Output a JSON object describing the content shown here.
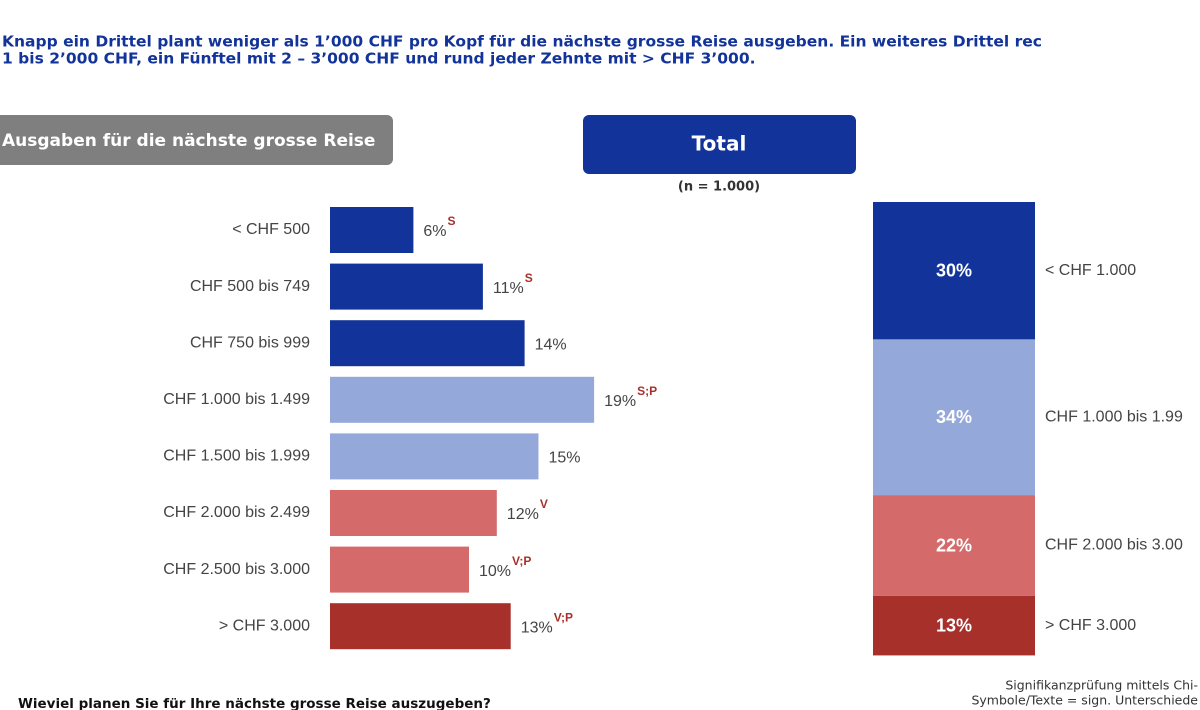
{
  "title_lines": [
    "Knapp ein Drittel plant weniger als 1’000 CHF pro Kopf für die nächste grosse Reise ausgeben. Ein weiteres Drittel rec",
    "1 bis 2’000 CHF, ein Fünftel mit 2 – 3’000 CHF und rund jeder Zehnte mit > CHF 3’000."
  ],
  "section_label": "Ausgaben für die nächste grosse Reise",
  "panel_title": "Total",
  "sample_note": "(n = 1.000)",
  "question": "Wieviel planen Sie für Ihre nächste grosse Reise auszugeben?",
  "footnote_lines": [
    "Signifikanzprüfung mittels Chi-",
    "Symbole/Texte = sign. Unterschiede"
  ],
  "chart_data": [
    {
      "type": "hbar",
      "categories": [
        "< CHF 500",
        "CHF 500 bis 749",
        "CHF 750 bis 999",
        "CHF 1.000 bis 1.499",
        "CHF 1.500 bis 1.999",
        "CHF 2.000 bis 2.499",
        "CHF 2.500 bis 3.000",
        "> CHF 3.000"
      ],
      "values": [
        6,
        11,
        14,
        19,
        15,
        12,
        10,
        13
      ],
      "value_labels": [
        "6%",
        "11%",
        "14%",
        "19%",
        "15%",
        "12%",
        "10%",
        "13%"
      ],
      "annotations": [
        "S",
        "S",
        null,
        "S;P",
        null,
        "V",
        "V;P",
        "V;P"
      ],
      "colors": [
        "#12339a",
        "#12339a",
        "#12339a",
        "#94a8da",
        "#94a8da",
        "#d46a6a",
        "#d46a6a",
        "#a8302b"
      ]
    },
    {
      "type": "stacked",
      "series": [
        {
          "name": "< CHF 1.000",
          "color": "#12339a",
          "values": [
            30
          ],
          "value_labels": [
            "30%"
          ]
        },
        {
          "name": "CHF 1.000 bis 1.99",
          "color": "#94a8da",
          "values": [
            34
          ],
          "value_labels": [
            "34%"
          ]
        },
        {
          "name": "CHF 2.000 bis 3.00",
          "color": "#d46a6a",
          "values": [
            22
          ],
          "value_labels": [
            "22%"
          ]
        },
        {
          "name": "> CHF 3.000",
          "color": "#a8302b",
          "values": [
            13
          ],
          "value_labels": [
            "13%"
          ]
        }
      ]
    }
  ]
}
